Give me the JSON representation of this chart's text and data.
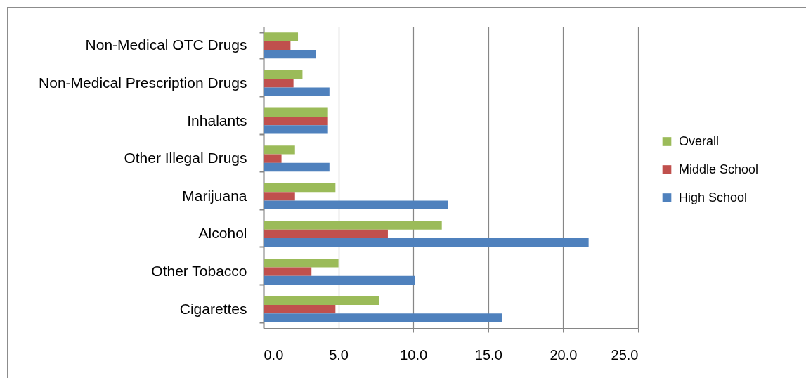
{
  "chart_data": {
    "type": "bar",
    "orientation": "horizontal",
    "categories": [
      "Non-Medical OTC Drugs",
      "Non-Medical Prescription Drugs",
      "Inhalants",
      "Other Illegal Drugs",
      "Marijuana",
      "Alcohol",
      "Other Tobacco",
      "Cigarettes"
    ],
    "series": [
      {
        "name": "Overall",
        "color": "#9bbb59",
        "values": [
          2.3,
          2.6,
          4.3,
          2.1,
          4.8,
          11.9,
          5.0,
          7.7
        ]
      },
      {
        "name": "Middle School",
        "color": "#c0504d",
        "values": [
          1.8,
          2.0,
          4.3,
          1.2,
          2.1,
          8.3,
          3.2,
          4.8
        ]
      },
      {
        "name": "High School",
        "color": "#4f81bd",
        "values": [
          3.5,
          4.4,
          4.3,
          4.4,
          12.3,
          21.7,
          10.1,
          15.9
        ]
      }
    ],
    "xlim": [
      0,
      25
    ],
    "xticks": [
      {
        "value": 0,
        "label": "0.0"
      },
      {
        "value": 5,
        "label": "5.0"
      },
      {
        "value": 10,
        "label": "10.0"
      },
      {
        "value": 15,
        "label": "15.0"
      },
      {
        "value": 20,
        "label": "20.0"
      },
      {
        "value": 25,
        "label": "25.0"
      }
    ],
    "grid": "x",
    "legend": "right"
  }
}
